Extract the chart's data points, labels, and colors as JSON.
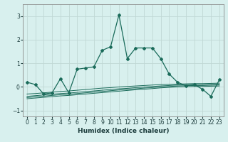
{
  "xlabel": "Humidex (Indice chaleur)",
  "x": [
    0,
    1,
    2,
    3,
    4,
    5,
    6,
    7,
    8,
    9,
    10,
    11,
    12,
    13,
    14,
    15,
    16,
    17,
    18,
    19,
    20,
    21,
    22,
    23
  ],
  "line1": [
    0.2,
    0.1,
    -0.3,
    -0.25,
    0.35,
    -0.25,
    0.75,
    0.8,
    0.85,
    1.55,
    1.7,
    3.05,
    1.2,
    1.65,
    1.65,
    1.65,
    1.2,
    0.55,
    0.2,
    0.05,
    0.1,
    -0.1,
    -0.4,
    0.3
  ],
  "line2": [
    -0.3,
    -0.28,
    -0.25,
    -0.22,
    -0.19,
    -0.17,
    -0.14,
    -0.11,
    -0.08,
    -0.05,
    -0.03,
    0.0,
    0.02,
    0.04,
    0.06,
    0.08,
    0.1,
    0.11,
    0.12,
    0.13,
    0.14,
    0.14,
    0.15,
    0.16
  ],
  "line3": [
    -0.4,
    -0.37,
    -0.34,
    -0.31,
    -0.28,
    -0.26,
    -0.23,
    -0.2,
    -0.17,
    -0.14,
    -0.11,
    -0.08,
    -0.06,
    -0.03,
    -0.01,
    0.02,
    0.04,
    0.06,
    0.08,
    0.09,
    0.1,
    0.1,
    0.11,
    0.12
  ],
  "line4": [
    -0.45,
    -0.42,
    -0.39,
    -0.36,
    -0.33,
    -0.31,
    -0.28,
    -0.25,
    -0.22,
    -0.19,
    -0.16,
    -0.13,
    -0.1,
    -0.08,
    -0.05,
    -0.03,
    0.0,
    0.02,
    0.04,
    0.05,
    0.06,
    0.06,
    0.07,
    0.08
  ],
  "line5": [
    -0.5,
    -0.47,
    -0.44,
    -0.41,
    -0.38,
    -0.36,
    -0.33,
    -0.3,
    -0.27,
    -0.24,
    -0.21,
    -0.18,
    -0.15,
    -0.12,
    -0.1,
    -0.07,
    -0.04,
    -0.02,
    0.0,
    0.01,
    0.02,
    0.02,
    0.03,
    0.04
  ],
  "line_color": "#1a6b5a",
  "bg_color": "#d8f0ee",
  "grid_color": "#c0d8d4",
  "ylim": [
    -1.25,
    3.5
  ],
  "xlim": [
    -0.5,
    23.5
  ],
  "yticks": [
    -1,
    0,
    1,
    2,
    3
  ],
  "xticks": [
    0,
    1,
    2,
    3,
    4,
    5,
    6,
    7,
    8,
    9,
    10,
    11,
    12,
    13,
    14,
    15,
    16,
    17,
    18,
    19,
    20,
    21,
    22,
    23
  ],
  "tick_fontsize": 5.5,
  "xlabel_fontsize": 6.5
}
